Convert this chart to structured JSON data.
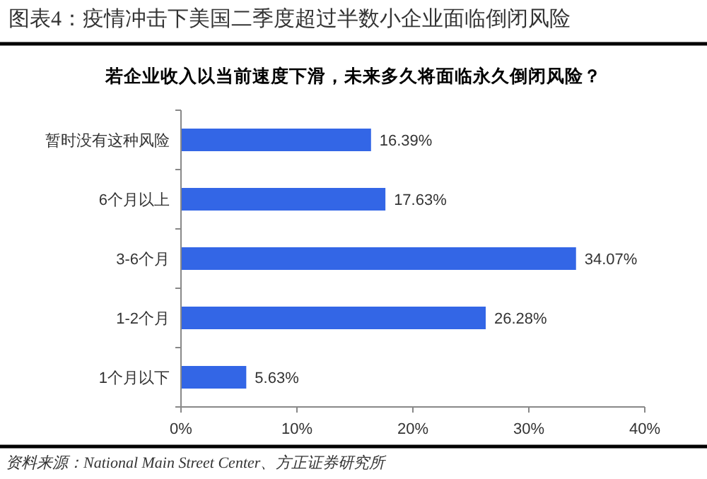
{
  "chart_data": {
    "type": "bar",
    "orientation": "horizontal",
    "title": "图表4：疫情冲击下美国二季度超过半数小企业面临倒闭风险",
    "subtitle": "若企业收入以当前速度下滑，未来多久将面临永久倒闭风险？",
    "categories": [
      "暂时没有这种风险",
      "6个月以上",
      "3-6个月",
      "1-2个月",
      "1个月以下"
    ],
    "values": [
      16.39,
      17.63,
      34.07,
      26.28,
      5.63
    ],
    "value_labels": [
      "16.39%",
      "17.63%",
      "34.07%",
      "26.28%",
      "5.63%"
    ],
    "color": "#3366e6",
    "xlim": [
      0,
      40
    ],
    "xticks": [
      {
        "value": 0,
        "label": "0%"
      },
      {
        "value": 10,
        "label": "10%"
      },
      {
        "value": 20,
        "label": "20%"
      },
      {
        "value": 30,
        "label": "30%"
      },
      {
        "value": 40,
        "label": "40%"
      }
    ],
    "grid": false,
    "annotations": [
      "资料来源：National Main Street Center、方正证券研究所"
    ]
  }
}
